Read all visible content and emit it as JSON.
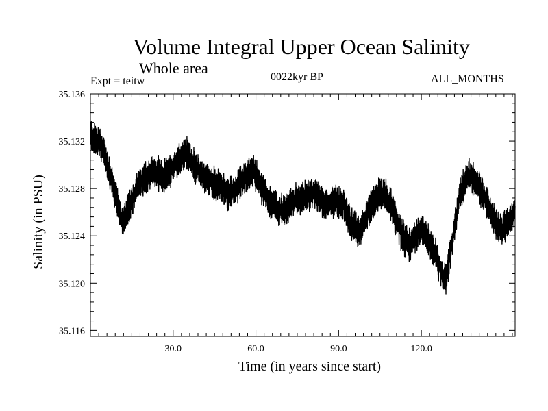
{
  "header": {
    "title": "Volume Integral Upper Ocean Salinity",
    "subtitle": "Whole area",
    "experiment": "Expt = teitw",
    "period": "0022kyr BP",
    "months": "ALL_MONTHS"
  },
  "chart_data": {
    "type": "line",
    "title": "Volume Integral Upper Ocean Salinity",
    "xlabel": "Time (in years since start)",
    "ylabel": "Salinity (in PSU)",
    "xlim": [
      0,
      154
    ],
    "ylim": [
      35.1155,
      35.136
    ],
    "x_ticks": [
      30,
      60,
      90,
      120
    ],
    "x_tick_labels": [
      "30.0",
      "60.0",
      "90.0",
      "120.0"
    ],
    "y_ticks": [
      35.116,
      35.12,
      35.124,
      35.128,
      35.132,
      35.136
    ],
    "y_tick_labels": [
      "35.116",
      "35.120",
      "35.124",
      "35.128",
      "35.132",
      "35.136"
    ],
    "grid": false,
    "series": [
      {
        "name": "Salinity",
        "color": "#000000",
        "x": [
          0,
          3,
          5,
          8,
          10,
          12,
          14,
          17,
          20,
          23,
          26,
          29,
          32,
          35,
          38,
          41,
          44,
          47,
          50,
          53,
          56,
          59,
          62,
          65,
          68,
          71,
          74,
          77,
          80,
          83,
          86,
          89,
          92,
          95,
          98,
          101,
          104,
          107,
          110,
          113,
          116,
          119,
          122,
          125,
          127,
          129,
          131,
          134,
          137,
          140,
          143,
          146,
          149,
          152,
          154
        ],
        "values": [
          35.1325,
          35.132,
          35.131,
          35.1285,
          35.1265,
          35.125,
          35.1265,
          35.128,
          35.129,
          35.1295,
          35.129,
          35.1295,
          35.1305,
          35.131,
          35.1298,
          35.129,
          35.1285,
          35.1282,
          35.1275,
          35.128,
          35.129,
          35.1295,
          35.1282,
          35.127,
          35.1262,
          35.1262,
          35.127,
          35.1272,
          35.1275,
          35.1272,
          35.1265,
          35.127,
          35.1265,
          35.1248,
          35.1245,
          35.1262,
          35.1275,
          35.1275,
          35.126,
          35.124,
          35.1232,
          35.1245,
          35.124,
          35.1225,
          35.121,
          35.1205,
          35.1232,
          35.1275,
          35.1292,
          35.1285,
          35.1272,
          35.1255,
          35.1245,
          35.1252,
          35.1262
        ]
      }
    ]
  }
}
